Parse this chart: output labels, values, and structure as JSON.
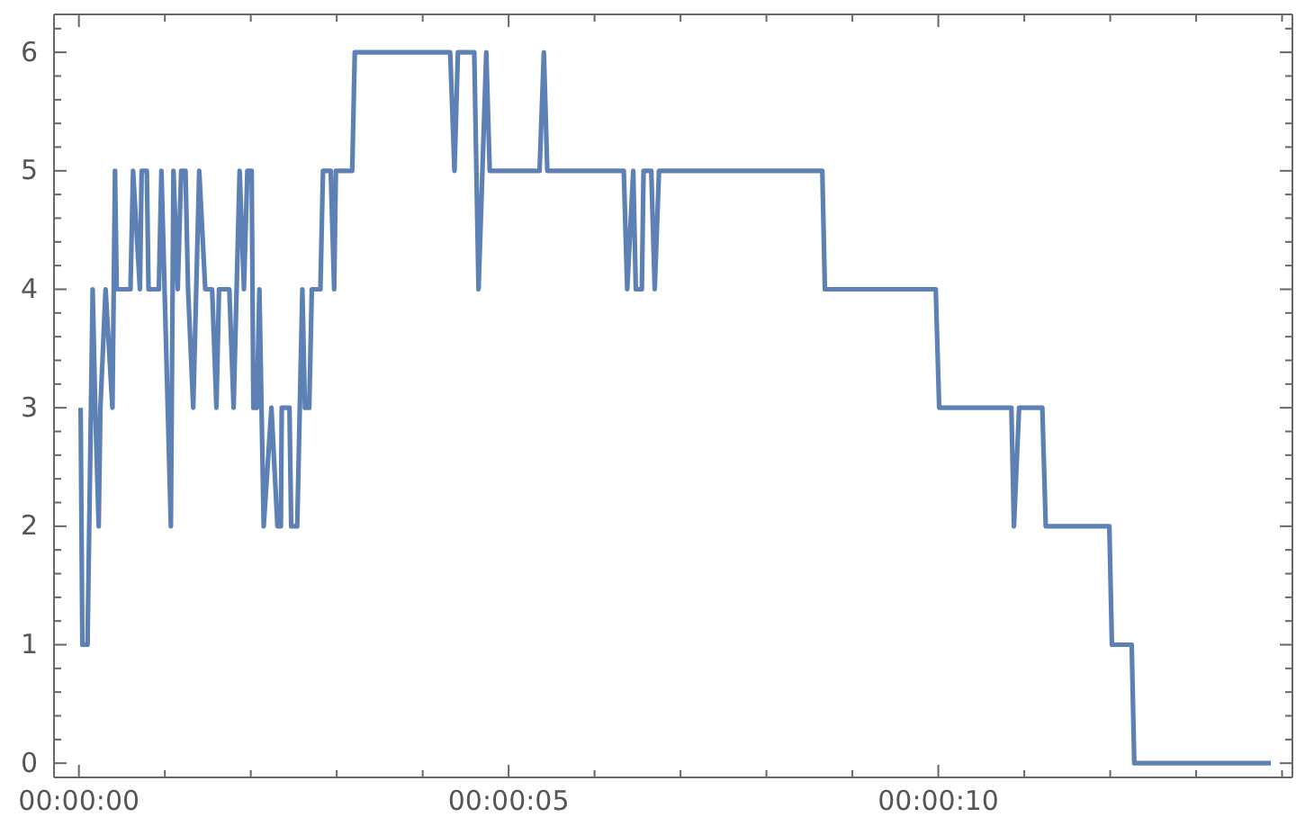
{
  "chart_data": {
    "type": "line",
    "color": "#5e81b5",
    "grid": false,
    "line_style": "solid",
    "marker": "none",
    "x": [
      0.02,
      0.04,
      0.1,
      0.16,
      0.19,
      0.23,
      0.25,
      0.31,
      0.39,
      0.42,
      0.44,
      0.6,
      0.63,
      0.71,
      0.73,
      0.79,
      0.81,
      0.93,
      0.96,
      1.07,
      1.1,
      1.15,
      1.19,
      1.24,
      1.27,
      1.33,
      1.4,
      1.47,
      1.55,
      1.6,
      1.63,
      1.75,
      1.8,
      1.87,
      1.92,
      1.96,
      2.01,
      2.03,
      2.07,
      2.1,
      2.15,
      2.24,
      2.31,
      2.35,
      2.36,
      2.45,
      2.47,
      2.54,
      2.57,
      2.6,
      2.63,
      2.68,
      2.71,
      2.81,
      2.84,
      2.93,
      2.97,
      2.99,
      3.18,
      3.21,
      4.32,
      4.37,
      4.41,
      4.6,
      4.65,
      4.74,
      4.78,
      5.36,
      5.41,
      5.45,
      6.34,
      6.38,
      6.45,
      6.48,
      6.55,
      6.57,
      6.66,
      6.7,
      6.75,
      8.65,
      8.68,
      9.97,
      10.01,
      10.85,
      10.88,
      10.94,
      11.21,
      11.25,
      11.99,
      12.02,
      12.25,
      12.28,
      13.87
    ],
    "values": [
      3,
      1,
      1,
      4,
      3,
      2,
      3,
      4,
      3,
      5,
      4,
      4,
      5,
      4,
      5,
      5,
      4,
      4,
      5,
      2,
      5,
      4,
      5,
      5,
      4,
      3,
      5,
      4,
      4,
      3,
      4,
      4,
      3,
      5,
      4,
      5,
      5,
      3,
      3,
      4,
      2,
      3,
      2,
      2,
      3,
      3,
      2,
      2,
      3,
      4,
      3,
      3,
      4,
      4,
      5,
      5,
      4,
      5,
      5,
      6,
      6,
      5,
      6,
      6,
      4,
      6,
      5,
      5,
      6,
      5,
      5,
      4,
      5,
      4,
      4,
      5,
      5,
      4,
      5,
      5,
      4,
      4,
      3,
      3,
      2,
      3,
      3,
      2,
      2,
      1,
      1,
      0,
      0
    ],
    "xlim": [
      -0.29,
      14.12
    ],
    "xticks": [
      {
        "value": 0,
        "label": "00:00:00"
      },
      {
        "value": 1,
        "label": null
      },
      {
        "value": 2,
        "label": null
      },
      {
        "value": 3,
        "label": null
      },
      {
        "value": 4,
        "label": null
      },
      {
        "value": 5,
        "label": "00:00:05"
      },
      {
        "value": 6,
        "label": null
      },
      {
        "value": 7,
        "label": null
      },
      {
        "value": 8,
        "label": null
      },
      {
        "value": 9,
        "label": null
      },
      {
        "value": 10,
        "label": "00:00:10"
      },
      {
        "value": 11,
        "label": null
      },
      {
        "value": 12,
        "label": null
      },
      {
        "value": 13,
        "label": null
      },
      {
        "value": 14,
        "label": null
      }
    ],
    "ylim": [
      -0.12,
      6.32
    ],
    "yticks": [
      0,
      {
        "value": 0.2,
        "label": null
      },
      {
        "value": 0.4,
        "label": null
      },
      {
        "value": 0.6,
        "label": null
      },
      {
        "value": 0.8,
        "label": null
      },
      1,
      {
        "value": 1.2,
        "label": null
      },
      {
        "value": 1.4,
        "label": null
      },
      {
        "value": 1.6,
        "label": null
      },
      {
        "value": 1.8,
        "label": null
      },
      2,
      {
        "value": 2.2,
        "label": null
      },
      {
        "value": 2.4,
        "label": null
      },
      {
        "value": 2.6,
        "label": null
      },
      {
        "value": 2.8,
        "label": null
      },
      3,
      {
        "value": 3.2,
        "label": null
      },
      {
        "value": 3.4,
        "label": null
      },
      {
        "value": 3.6,
        "label": null
      },
      {
        "value": 3.8,
        "label": null
      },
      4,
      {
        "value": 4.2,
        "label": null
      },
      {
        "value": 4.4,
        "label": null
      },
      {
        "value": 4.6,
        "label": null
      },
      {
        "value": 4.8,
        "label": null
      },
      5,
      {
        "value": 5.2,
        "label": null
      },
      {
        "value": 5.4,
        "label": null
      },
      {
        "value": 5.6,
        "label": null
      },
      {
        "value": 5.8,
        "label": null
      },
      6,
      {
        "value": 6.2,
        "label": null
      }
    ]
  }
}
